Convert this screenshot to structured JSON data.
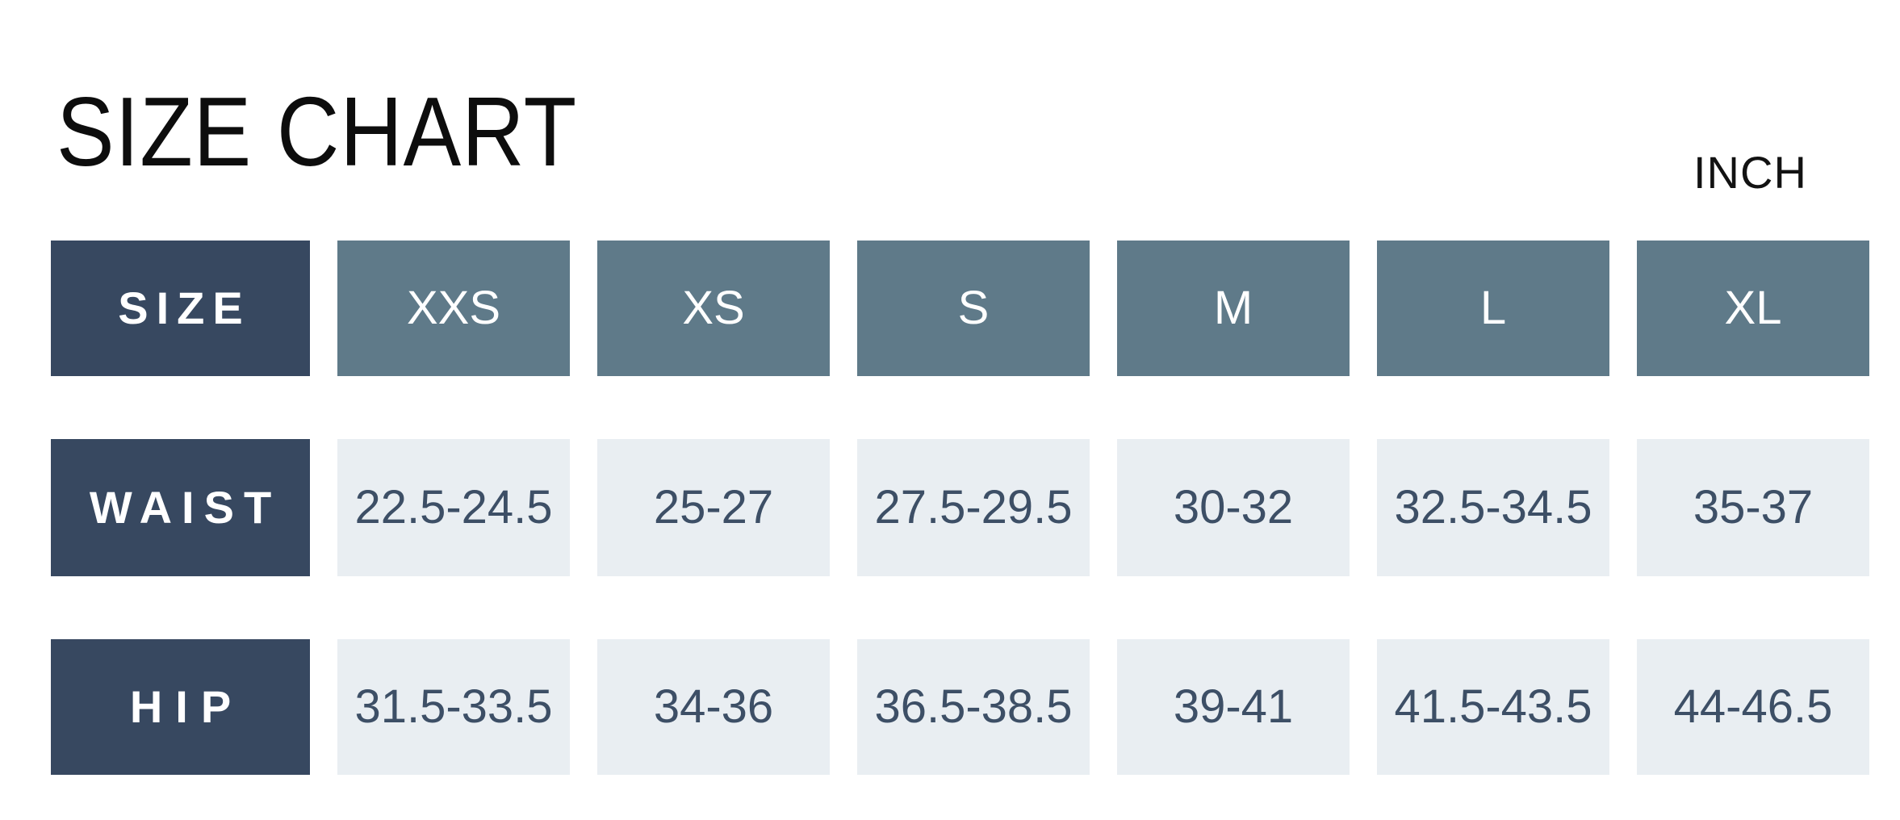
{
  "title": "SIZE CHART",
  "unit_label": "INCH",
  "colors": {
    "row_label_bg": "#374860",
    "size_header_bg": "#5f7a89",
    "value_cell_bg": "#e9eef2",
    "value_text": "#3d4f66",
    "header_text": "#ffffff",
    "title_text": "#0d0d0d",
    "background": "#ffffff"
  },
  "chart_data": {
    "type": "table",
    "title": "SIZE CHART",
    "unit": "INCH",
    "columns": [
      "SIZE",
      "XXS",
      "XS",
      "S",
      "M",
      "L",
      "XL"
    ],
    "rows": [
      {
        "label": "WAIST",
        "values": [
          "22.5-24.5",
          "25-27",
          "27.5-29.5",
          "30-32",
          "32.5-34.5",
          "35-37"
        ]
      },
      {
        "label": "HIP",
        "values": [
          "31.5-33.5",
          "34-36",
          "36.5-38.5",
          "39-41",
          "41.5-43.5",
          "44-46.5"
        ]
      }
    ]
  }
}
